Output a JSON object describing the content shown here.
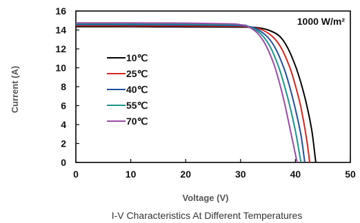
{
  "chart_data": {
    "type": "line",
    "title": "I-V Characteristics At Different Temperatures",
    "xlabel": "Voltage (V)",
    "ylabel": "Current (A)",
    "xlim": [
      0,
      50
    ],
    "ylim": [
      0,
      16
    ],
    "xticks": [
      "0",
      "10",
      "20",
      "30",
      "40",
      "50"
    ],
    "yticks": [
      "0",
      "2",
      "4",
      "6",
      "8",
      "10",
      "12",
      "14",
      "16"
    ],
    "annotation": "1000 W/m²",
    "grid": false,
    "legend_position": "left",
    "series": [
      {
        "name": "10℃",
        "color": "#000000",
        "x": [
          0,
          10,
          20,
          30,
          33,
          35,
          37,
          38.5,
          40,
          41,
          42,
          43,
          43.7
        ],
        "y": [
          14.35,
          14.34,
          14.32,
          14.3,
          14.25,
          14.0,
          13.4,
          12.2,
          10.2,
          8.4,
          6.2,
          3.3,
          0
        ]
      },
      {
        "name": "25℃",
        "color": "#d7261e",
        "x": [
          0,
          10,
          20,
          30,
          32,
          34,
          36,
          37.5,
          39,
          40,
          41,
          42,
          42.6
        ],
        "y": [
          14.45,
          14.44,
          14.42,
          14.38,
          14.3,
          14.0,
          13.2,
          12.0,
          10.0,
          8.1,
          5.8,
          2.6,
          0
        ]
      },
      {
        "name": "40℃",
        "color": "#1f4e9c",
        "x": [
          0,
          10,
          20,
          30,
          31.5,
          33,
          35,
          36.5,
          38,
          39,
          40,
          41,
          41.7
        ],
        "y": [
          14.55,
          14.54,
          14.52,
          14.46,
          14.35,
          14.1,
          13.2,
          11.9,
          9.8,
          7.9,
          5.6,
          2.9,
          0
        ]
      },
      {
        "name": "55℃",
        "color": "#18968a",
        "x": [
          0,
          10,
          20,
          30,
          31,
          32.5,
          34,
          35.5,
          37,
          38,
          39,
          40,
          41
        ],
        "y": [
          14.65,
          14.64,
          14.62,
          14.53,
          14.4,
          14.1,
          13.4,
          12.1,
          10.0,
          8.1,
          5.9,
          3.3,
          0
        ]
      },
      {
        "name": "70℃",
        "color": "#9c4aa8",
        "x": [
          0,
          10,
          20,
          28,
          30,
          31.5,
          33,
          34.5,
          36,
          37,
          38,
          39,
          40.3
        ],
        "y": [
          14.75,
          14.74,
          14.72,
          14.65,
          14.55,
          14.3,
          13.7,
          12.5,
          10.5,
          8.6,
          6.3,
          3.6,
          0
        ]
      }
    ]
  }
}
